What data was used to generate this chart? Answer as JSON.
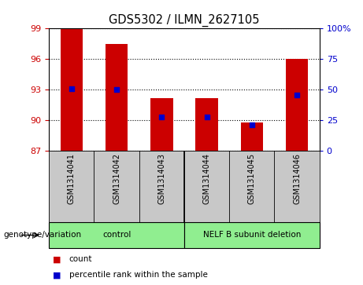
{
  "title": "GDS5302 / ILMN_2627105",
  "samples": [
    "GSM1314041",
    "GSM1314042",
    "GSM1314043",
    "GSM1314044",
    "GSM1314045",
    "GSM1314046"
  ],
  "bar_tops": [
    99.0,
    97.5,
    92.2,
    92.2,
    89.8,
    96.0
  ],
  "bar_bottom": 87,
  "percentile_values": [
    93.1,
    93.0,
    90.3,
    90.3,
    89.6,
    92.5
  ],
  "ylim_left": [
    87,
    99
  ],
  "yticks_left": [
    87,
    90,
    93,
    96,
    99
  ],
  "yticks_right": [
    0,
    25,
    50,
    75,
    100
  ],
  "bar_color": "#cc0000",
  "dot_color": "#0000cc",
  "bg_color": "#c8c8c8",
  "group_bg": "#90ee90",
  "group_label": "genotype/variation",
  "group_configs": [
    {
      "xstart": 0,
      "xend": 3,
      "label": "control"
    },
    {
      "xstart": 3,
      "xend": 6,
      "label": "NELF B subunit deletion"
    }
  ],
  "legend_items": [
    {
      "color": "#cc0000",
      "label": "count"
    },
    {
      "color": "#0000cc",
      "label": "percentile rank within the sample"
    }
  ]
}
